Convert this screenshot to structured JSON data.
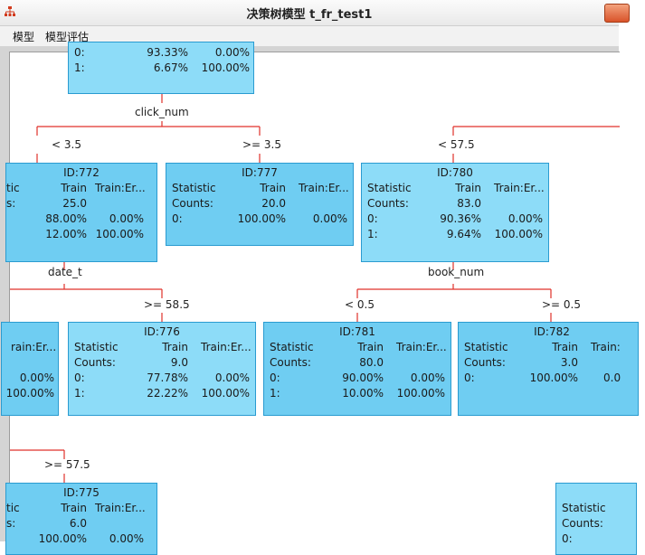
{
  "window": {
    "title": "决策树模型 t_fr_test1"
  },
  "menu": {
    "items": [
      "模型",
      "模型评估"
    ]
  },
  "tree": {
    "root": {
      "r0": [
        "0:",
        "93.33%",
        "0.00%"
      ],
      "r1": [
        "1:",
        "6.67%",
        "100.00%"
      ]
    },
    "split_labels": {
      "click_num": "click_num",
      "date_t": "date_t",
      "book_num": "book_num"
    },
    "branch_labels": {
      "lt_3_5": "<  3.5",
      "ge_3_5": ">=  3.5",
      "lt_57_5": "<  57.5",
      "ge_58_5": ">=  58.5",
      "lt_0_5": "<  0.5",
      "ge_0_5": ">=  0.5",
      "ge_57_5": ">=  57.5"
    },
    "n772": {
      "id": "ID:772",
      "hdr": [
        "tic",
        "Train",
        "Train:Er..."
      ],
      "r0": [
        "s:",
        "25.0",
        ""
      ],
      "r1": [
        "",
        "88.00%",
        "0.00%"
      ],
      "r2": [
        "",
        "12.00%",
        "100.00%"
      ]
    },
    "n777": {
      "id": "ID:777",
      "hdr": [
        "Statistic",
        "Train",
        "Train:Er..."
      ],
      "r0": [
        "Counts:",
        "20.0",
        ""
      ],
      "r1": [
        "0:",
        "100.00%",
        "0.00%"
      ]
    },
    "n780": {
      "id": "ID:780",
      "hdr": [
        "Statistic",
        "Train",
        "Train:Er..."
      ],
      "r0": [
        "Counts:",
        "83.0",
        ""
      ],
      "r1": [
        "0:",
        "90.36%",
        "0.00%"
      ],
      "r2": [
        "1:",
        "9.64%",
        "100.00%"
      ]
    },
    "nleft": {
      "hdr": "rain:Er...",
      "r1": "0.00%",
      "r2": "100.00%"
    },
    "n776": {
      "id": "ID:776",
      "hdr": [
        "Statistic",
        "Train",
        "Train:Er..."
      ],
      "r0": [
        "Counts:",
        "9.0",
        ""
      ],
      "r1": [
        "0:",
        "77.78%",
        "0.00%"
      ],
      "r2": [
        "1:",
        "22.22%",
        "100.00%"
      ]
    },
    "n781": {
      "id": "ID:781",
      "hdr": [
        "Statistic",
        "Train",
        "Train:Er..."
      ],
      "r0": [
        "Counts:",
        "80.0",
        ""
      ],
      "r1": [
        "0:",
        "90.00%",
        "0.00%"
      ],
      "r2": [
        "1:",
        "10.00%",
        "100.00%"
      ]
    },
    "n782": {
      "id": "ID:782",
      "hdr": [
        "Statistic",
        "Train",
        "Train:"
      ],
      "r0": [
        "Counts:",
        "3.0",
        ""
      ],
      "r1": [
        "0:",
        "100.00%",
        "0.0"
      ]
    },
    "n775": {
      "id": "ID:775",
      "hdr": [
        "tic",
        "Train",
        "Train:Er..."
      ],
      "r0": [
        "s:",
        "6.0",
        ""
      ],
      "r1": [
        "",
        "100.00%",
        "0.00%"
      ]
    },
    "npart": {
      "hdr": "Statistic",
      "r0": "Counts:",
      "r1": "0:"
    }
  }
}
